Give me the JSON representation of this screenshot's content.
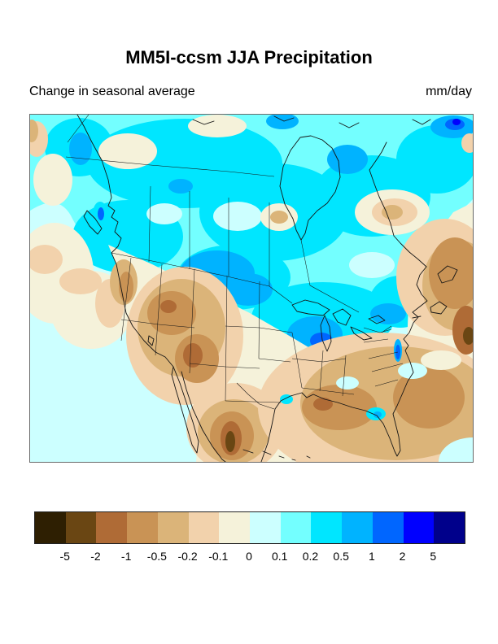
{
  "figure": {
    "title": "MM5I-ccsm JJA Precipitation",
    "subtitle": "Change in seasonal average",
    "units": "mm/day"
  },
  "map": {
    "region": "North America",
    "kind": "filled contour map of precipitation change",
    "ocean_base_color": "#ccffff",
    "coastline_color": "#151515"
  },
  "colorbar": {
    "orientation": "horizontal",
    "tick_labels": [
      "-5",
      "-2",
      "-1",
      "-0.5",
      "-0.2",
      "-0.1",
      "0",
      "0.1",
      "0.2",
      "0.5",
      "1",
      "2",
      "5"
    ],
    "colors": [
      "#2e1f02",
      "#6a4613",
      "#af6b36",
      "#c99355",
      "#dbb479",
      "#f2d2ac",
      "#f5f2da",
      "#ccffff",
      "#73ffff",
      "#00e6ff",
      "#00b3ff",
      "#0066ff",
      "#0000ff",
      "#00008b"
    ]
  },
  "chart_data": {
    "type": "heatmap",
    "title": "MM5I-ccsm JJA Precipitation",
    "subtitle": "Change in seasonal average",
    "units": "mm/day",
    "legend_position": "bottom",
    "colorbar_tick_labels": [
      "-5",
      "-2",
      "-1",
      "-0.5",
      "-0.2",
      "-0.1",
      "0",
      "0.1",
      "0.2",
      "0.5",
      "1",
      "2",
      "5"
    ],
    "colorbar_colors": [
      "#2e1f02",
      "#6a4613",
      "#af6b36",
      "#c99355",
      "#dbb479",
      "#f2d2ac",
      "#f5f2da",
      "#ccffff",
      "#73ffff",
      "#00e6ff",
      "#00b3ff",
      "#0066ff",
      "#0000ff",
      "#00008b"
    ]
  }
}
